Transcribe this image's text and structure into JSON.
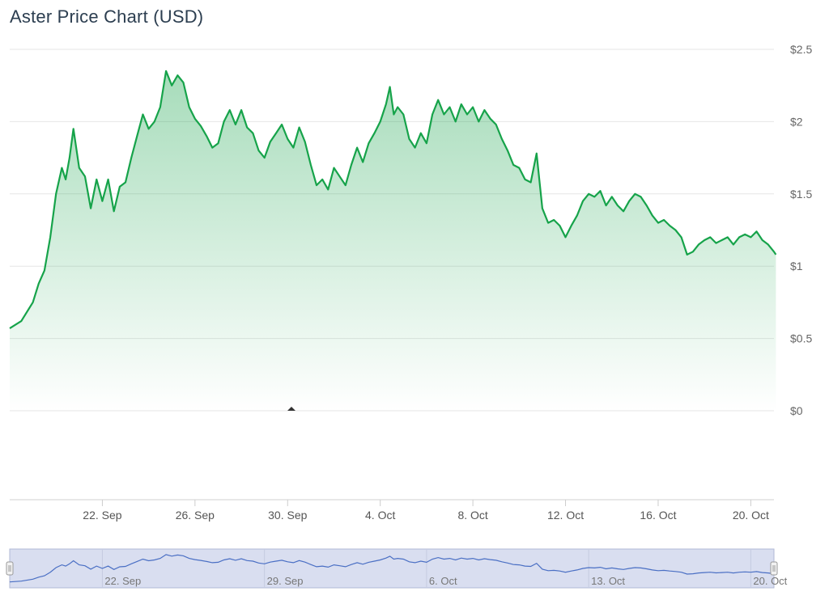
{
  "chart_data": {
    "type": "area",
    "title": "Aster Price Chart (USD)",
    "xlabel": "",
    "ylabel": "",
    "ylim": [
      0,
      2.5
    ],
    "xlim": [
      "2025-09-18",
      "2025-10-21"
    ],
    "y_ticks": [
      {
        "value": 0,
        "label": "$0"
      },
      {
        "value": 0.5,
        "label": "$0.5"
      },
      {
        "value": 1,
        "label": "$1"
      },
      {
        "value": 1.5,
        "label": "$1.5"
      },
      {
        "value": 2,
        "label": "$2"
      },
      {
        "value": 2.5,
        "label": "$2.5"
      }
    ],
    "x_ticks": [
      {
        "date": "2025-09-22",
        "label": "22. Sep"
      },
      {
        "date": "2025-09-26",
        "label": "26. Sep"
      },
      {
        "date": "2025-09-30",
        "label": "30. Sep"
      },
      {
        "date": "2025-10-04",
        "label": "4. Oct"
      },
      {
        "date": "2025-10-08",
        "label": "8. Oct"
      },
      {
        "date": "2025-10-12",
        "label": "12. Oct"
      },
      {
        "date": "2025-10-16",
        "label": "16. Oct"
      },
      {
        "date": "2025-10-20",
        "label": "20. Oct"
      }
    ],
    "navigator_ticks": [
      {
        "date": "2025-09-22",
        "label": "22. Sep"
      },
      {
        "date": "2025-09-29",
        "label": "29. Sep"
      },
      {
        "date": "2025-10-06",
        "label": "6. Oct"
      },
      {
        "date": "2025-10-13",
        "label": "13. Oct"
      },
      {
        "date": "2025-10-20",
        "label": "20. Oct"
      }
    ],
    "grid": true,
    "series": [
      {
        "color": "#16a34a",
        "points": [
          [
            "2025-09-18",
            0.57
          ],
          [
            "2025-09-18T12:00",
            0.62
          ],
          [
            "2025-09-19",
            0.75
          ],
          [
            "2025-09-19T06:00",
            0.88
          ],
          [
            "2025-09-19T12:00",
            0.97
          ],
          [
            "2025-09-19T18:00",
            1.2
          ],
          [
            "2025-09-20",
            1.5
          ],
          [
            "2025-09-20T06:00",
            1.68
          ],
          [
            "2025-09-20T10:00",
            1.6
          ],
          [
            "2025-09-20T14:00",
            1.75
          ],
          [
            "2025-09-20T18:00",
            1.95
          ],
          [
            "2025-09-21",
            1.68
          ],
          [
            "2025-09-21T06:00",
            1.62
          ],
          [
            "2025-09-21T12:00",
            1.4
          ],
          [
            "2025-09-21T18:00",
            1.6
          ],
          [
            "2025-09-22",
            1.45
          ],
          [
            "2025-09-22T06:00",
            1.6
          ],
          [
            "2025-09-22T12:00",
            1.38
          ],
          [
            "2025-09-22T18:00",
            1.55
          ],
          [
            "2025-09-23",
            1.58
          ],
          [
            "2025-09-23T06:00",
            1.75
          ],
          [
            "2025-09-23T12:00",
            1.9
          ],
          [
            "2025-09-23T18:00",
            2.05
          ],
          [
            "2025-09-24",
            1.95
          ],
          [
            "2025-09-24T06:00",
            2.0
          ],
          [
            "2025-09-24T12:00",
            2.1
          ],
          [
            "2025-09-24T18:00",
            2.35
          ],
          [
            "2025-09-25",
            2.25
          ],
          [
            "2025-09-25T06:00",
            2.32
          ],
          [
            "2025-09-25T12:00",
            2.27
          ],
          [
            "2025-09-25T18:00",
            2.1
          ],
          [
            "2025-09-26",
            2.02
          ],
          [
            "2025-09-26T06:00",
            1.97
          ],
          [
            "2025-09-26T12:00",
            1.9
          ],
          [
            "2025-09-26T18:00",
            1.82
          ],
          [
            "2025-09-27",
            1.85
          ],
          [
            "2025-09-27T06:00",
            2.0
          ],
          [
            "2025-09-27T12:00",
            2.08
          ],
          [
            "2025-09-27T18:00",
            1.98
          ],
          [
            "2025-09-28",
            2.08
          ],
          [
            "2025-09-28T06:00",
            1.96
          ],
          [
            "2025-09-28T12:00",
            1.92
          ],
          [
            "2025-09-28T18:00",
            1.8
          ],
          [
            "2025-09-29",
            1.75
          ],
          [
            "2025-09-29T06:00",
            1.86
          ],
          [
            "2025-09-29T12:00",
            1.92
          ],
          [
            "2025-09-29T18:00",
            1.98
          ],
          [
            "2025-09-30",
            1.88
          ],
          [
            "2025-09-30T06:00",
            1.82
          ],
          [
            "2025-09-30T12:00",
            1.96
          ],
          [
            "2025-09-30T18:00",
            1.86
          ],
          [
            "2025-10-01",
            1.7
          ],
          [
            "2025-10-01T06:00",
            1.56
          ],
          [
            "2025-10-01T12:00",
            1.6
          ],
          [
            "2025-10-01T18:00",
            1.53
          ],
          [
            "2025-10-02",
            1.68
          ],
          [
            "2025-10-02T06:00",
            1.62
          ],
          [
            "2025-10-02T12:00",
            1.56
          ],
          [
            "2025-10-02T18:00",
            1.7
          ],
          [
            "2025-10-03",
            1.82
          ],
          [
            "2025-10-03T06:00",
            1.72
          ],
          [
            "2025-10-03T12:00",
            1.85
          ],
          [
            "2025-10-03T18:00",
            1.92
          ],
          [
            "2025-10-04",
            2.0
          ],
          [
            "2025-10-04T06:00",
            2.12
          ],
          [
            "2025-10-04T10:00",
            2.24
          ],
          [
            "2025-10-04T14:00",
            2.05
          ],
          [
            "2025-10-04T18:00",
            2.1
          ],
          [
            "2025-10-05",
            2.05
          ],
          [
            "2025-10-05T06:00",
            1.88
          ],
          [
            "2025-10-05T12:00",
            1.82
          ],
          [
            "2025-10-05T18:00",
            1.92
          ],
          [
            "2025-10-06",
            1.85
          ],
          [
            "2025-10-06T06:00",
            2.05
          ],
          [
            "2025-10-06T12:00",
            2.15
          ],
          [
            "2025-10-06T18:00",
            2.05
          ],
          [
            "2025-10-07",
            2.1
          ],
          [
            "2025-10-07T06:00",
            2.0
          ],
          [
            "2025-10-07T12:00",
            2.12
          ],
          [
            "2025-10-07T18:00",
            2.05
          ],
          [
            "2025-10-08",
            2.1
          ],
          [
            "2025-10-08T06:00",
            2.0
          ],
          [
            "2025-10-08T12:00",
            2.08
          ],
          [
            "2025-10-08T18:00",
            2.02
          ],
          [
            "2025-10-09",
            1.98
          ],
          [
            "2025-10-09T06:00",
            1.88
          ],
          [
            "2025-10-09T12:00",
            1.8
          ],
          [
            "2025-10-09T18:00",
            1.7
          ],
          [
            "2025-10-10",
            1.68
          ],
          [
            "2025-10-10T06:00",
            1.6
          ],
          [
            "2025-10-10T12:00",
            1.58
          ],
          [
            "2025-10-10T18:00",
            1.78
          ],
          [
            "2025-10-11",
            1.4
          ],
          [
            "2025-10-11T06:00",
            1.3
          ],
          [
            "2025-10-11T12:00",
            1.32
          ],
          [
            "2025-10-11T18:00",
            1.28
          ],
          [
            "2025-10-12",
            1.2
          ],
          [
            "2025-10-12T06:00",
            1.28
          ],
          [
            "2025-10-12T12:00",
            1.35
          ],
          [
            "2025-10-12T18:00",
            1.45
          ],
          [
            "2025-10-13",
            1.5
          ],
          [
            "2025-10-13T06:00",
            1.48
          ],
          [
            "2025-10-13T12:00",
            1.52
          ],
          [
            "2025-10-13T18:00",
            1.42
          ],
          [
            "2025-10-14",
            1.48
          ],
          [
            "2025-10-14T06:00",
            1.42
          ],
          [
            "2025-10-14T12:00",
            1.38
          ],
          [
            "2025-10-14T18:00",
            1.45
          ],
          [
            "2025-10-15",
            1.5
          ],
          [
            "2025-10-15T06:00",
            1.48
          ],
          [
            "2025-10-15T12:00",
            1.42
          ],
          [
            "2025-10-15T18:00",
            1.35
          ],
          [
            "2025-10-16",
            1.3
          ],
          [
            "2025-10-16T06:00",
            1.32
          ],
          [
            "2025-10-16T12:00",
            1.28
          ],
          [
            "2025-10-16T18:00",
            1.25
          ],
          [
            "2025-10-17",
            1.2
          ],
          [
            "2025-10-17T06:00",
            1.08
          ],
          [
            "2025-10-17T12:00",
            1.1
          ],
          [
            "2025-10-17T18:00",
            1.15
          ],
          [
            "2025-10-18",
            1.18
          ],
          [
            "2025-10-18T06:00",
            1.2
          ],
          [
            "2025-10-18T12:00",
            1.16
          ],
          [
            "2025-10-18T18:00",
            1.18
          ],
          [
            "2025-10-19",
            1.2
          ],
          [
            "2025-10-19T06:00",
            1.15
          ],
          [
            "2025-10-19T12:00",
            1.2
          ],
          [
            "2025-10-19T18:00",
            1.22
          ],
          [
            "2025-10-20",
            1.2
          ],
          [
            "2025-10-20T06:00",
            1.24
          ],
          [
            "2025-10-20T12:00",
            1.18
          ],
          [
            "2025-10-20T18:00",
            1.15
          ],
          [
            "2025-10-21",
            1.1
          ],
          [
            "2025-10-21T02:00",
            1.08
          ]
        ]
      }
    ],
    "navigator": {
      "range_start": "2025-09-18",
      "range_end": "2025-10-21"
    }
  }
}
